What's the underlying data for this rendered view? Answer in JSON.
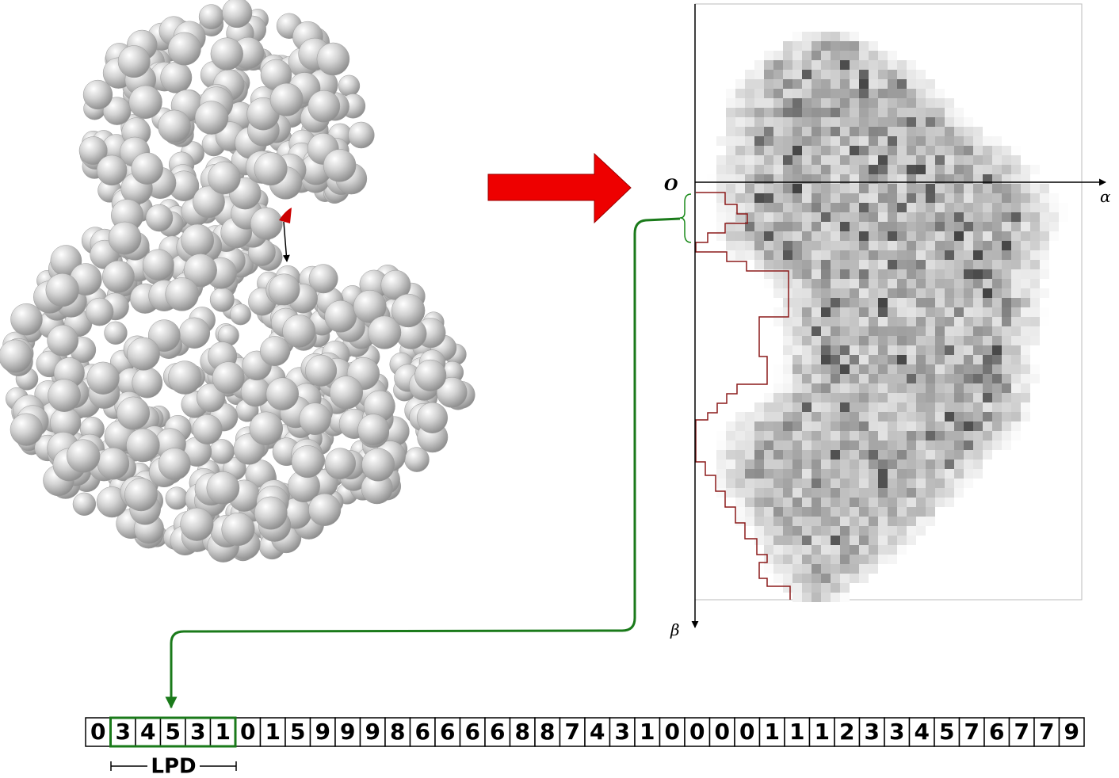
{
  "axes": {
    "origin": "O",
    "x_label": "α",
    "y_label": "β"
  },
  "sequence": {
    "cells": [
      0,
      3,
      4,
      5,
      3,
      1,
      0,
      1,
      5,
      9,
      9,
      9,
      8,
      6,
      6,
      6,
      6,
      8,
      8,
      7,
      4,
      3,
      1,
      0,
      0,
      0,
      0,
      1,
      1,
      1,
      2,
      3,
      3,
      4,
      5,
      7,
      6,
      7,
      7,
      9
    ],
    "highlight_label": "LPD"
  }
}
